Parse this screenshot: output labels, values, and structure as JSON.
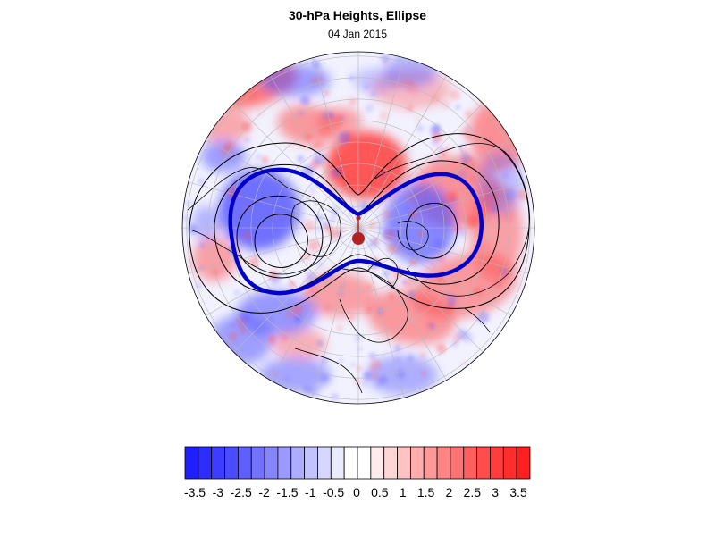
{
  "title": "30-hPa Heights, Ellipse",
  "date": "04 Jan 2015",
  "colorbar": {
    "labels": [
      "-3.5",
      "-3",
      "-2.5",
      "-2",
      "-1.5",
      "-1",
      "-0.5",
      "0",
      "0.5",
      "1",
      "1.5",
      "2",
      "2.5",
      "3",
      "3.5"
    ],
    "colors": [
      "#1f1fff",
      "#2d2dff",
      "#3d3dff",
      "#4c4cff",
      "#5f5fff",
      "#7272ff",
      "#8585ff",
      "#9999ff",
      "#adadff",
      "#c2c2ff",
      "#d6d6ff",
      "#ebebff",
      "#ffffff",
      "#ffffff",
      "#ffebeb",
      "#ffd6d6",
      "#ffc2c2",
      "#ffadad",
      "#ff9999",
      "#ff8585",
      "#ff7272",
      "#ff5f5f",
      "#ff4c4c",
      "#ff3d3d",
      "#ff2d2d",
      "#ff1f1f"
    ]
  },
  "map": {
    "projection": "north polar stereographic",
    "warm_color": "#ff5050",
    "cold_color": "#5a5aff",
    "ellipse_color": "#0000c8",
    "centroid_color": "#b22222"
  }
}
